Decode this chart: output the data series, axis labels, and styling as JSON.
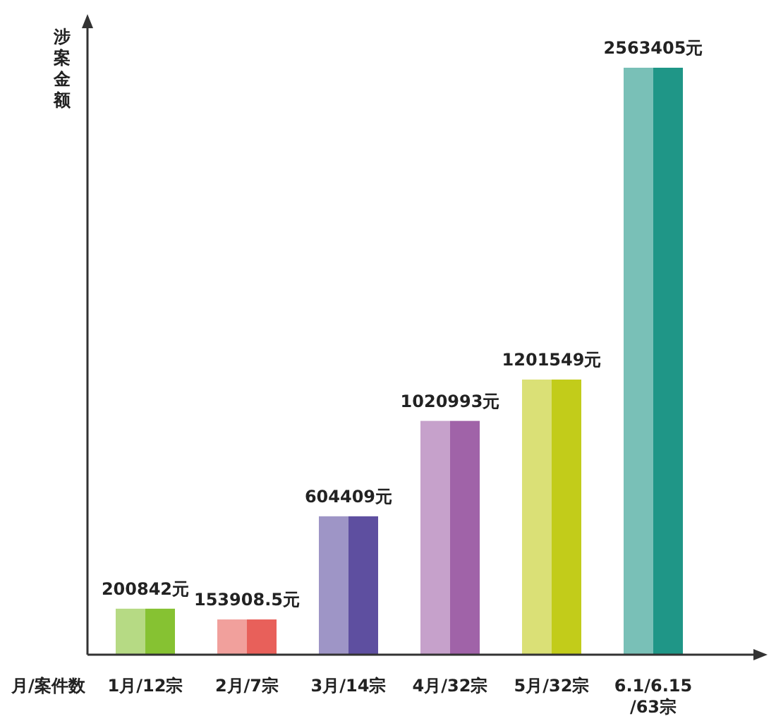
{
  "chart_data": {
    "type": "bar",
    "xlabel": "月/案件数",
    "ylabel": "涉案金额",
    "categories": [
      "1月/12宗",
      "2月/7宗",
      "3月/14宗",
      "4月/32宗",
      "5月/32宗",
      "6.1/6.15\n/63宗"
    ],
    "values": [
      200842,
      153908.5,
      604409,
      1020993,
      1201549,
      2563405
    ],
    "value_labels": [
      "200842元",
      "153908.5元",
      "604409元",
      "1020993元",
      "1201549元",
      "2563405元"
    ],
    "colors": [
      "#86c232",
      "#e8605a",
      "#5e4fa0",
      "#a063a8",
      "#c2cc1a",
      "#1f9687"
    ]
  }
}
